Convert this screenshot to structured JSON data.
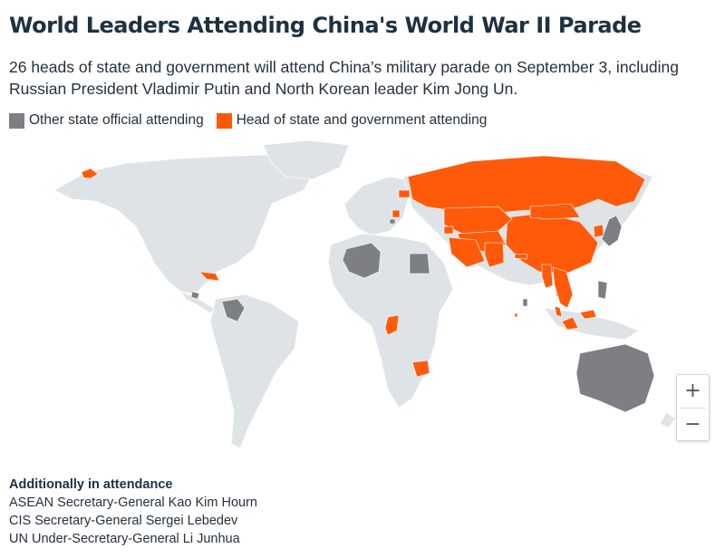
{
  "header": {
    "title": "World Leaders Attending China's World War II Parade",
    "subtitle": "26 heads of state and government will attend China’s military parade on September 3, including Russian President Vladimir Putin and North Korean leader Kim Jong Un."
  },
  "legend": [
    {
      "label": "Other state official attending",
      "color": "#7d7f85"
    },
    {
      "label": "Head of state and government attending",
      "color": "#ff5a0a"
    }
  ],
  "map": {
    "land_color": "#dde3e6",
    "water_color": "#ffffff",
    "heads_of_state": [
      "Russia",
      "China",
      "Mongolia",
      "North Korea",
      "Kazakhstan",
      "Uzbekistan",
      "Kyrgyzstan",
      "Tajikistan",
      "Turkmenistan",
      "Azerbaijan",
      "Armenia",
      "Belarus",
      "Serbia",
      "Slovakia",
      "Iran",
      "Pakistan",
      "Nepal",
      "Myanmar",
      "Laos",
      "Vietnam",
      "Cambodia",
      "Malaysia",
      "Indonesia",
      "Maldives",
      "Cuba",
      "Republic of the Congo",
      "Zimbabwe"
    ],
    "other_officials": [
      "Algeria",
      "Egypt",
      "Venezuela",
      "Nicaragua",
      "Japan",
      "Philippines",
      "Australia",
      "Bosnia and Herzegovina",
      "Thailand",
      "Sri Lanka"
    ]
  },
  "zoom": {
    "in": "+",
    "out": "−"
  },
  "notes": {
    "heading": "Additionally in attendance",
    "items": [
      "ASEAN Secretary-General Kao Kim Hourn",
      "CIS Secretary-General Sergei Lebedev",
      "UN Under-Secretary-General Li Junhua"
    ]
  }
}
